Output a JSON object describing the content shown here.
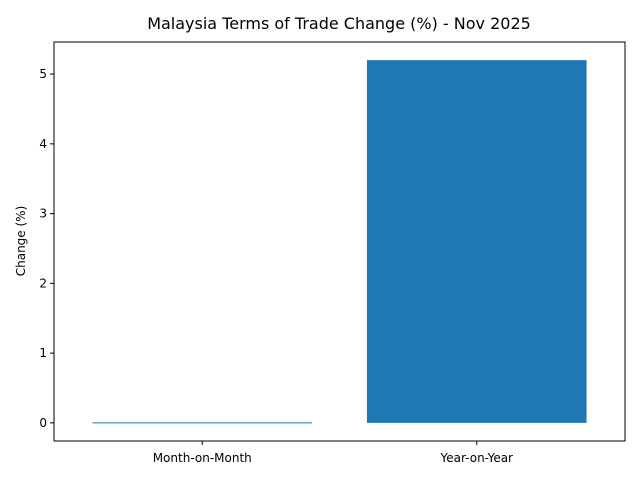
{
  "chart_data": {
    "type": "bar",
    "title": "Malaysia Terms of Trade Change (%) - Nov 2025",
    "xlabel": "",
    "ylabel": "Change (%)",
    "categories": [
      "Month-on-Month",
      "Year-on-Year"
    ],
    "values": [
      0.0,
      5.2
    ],
    "ylim": [
      -0.26,
      5.46
    ],
    "yticks": [
      0,
      1,
      2,
      3,
      4,
      5
    ],
    "grid": false,
    "bar_color": "#1f77b4"
  }
}
